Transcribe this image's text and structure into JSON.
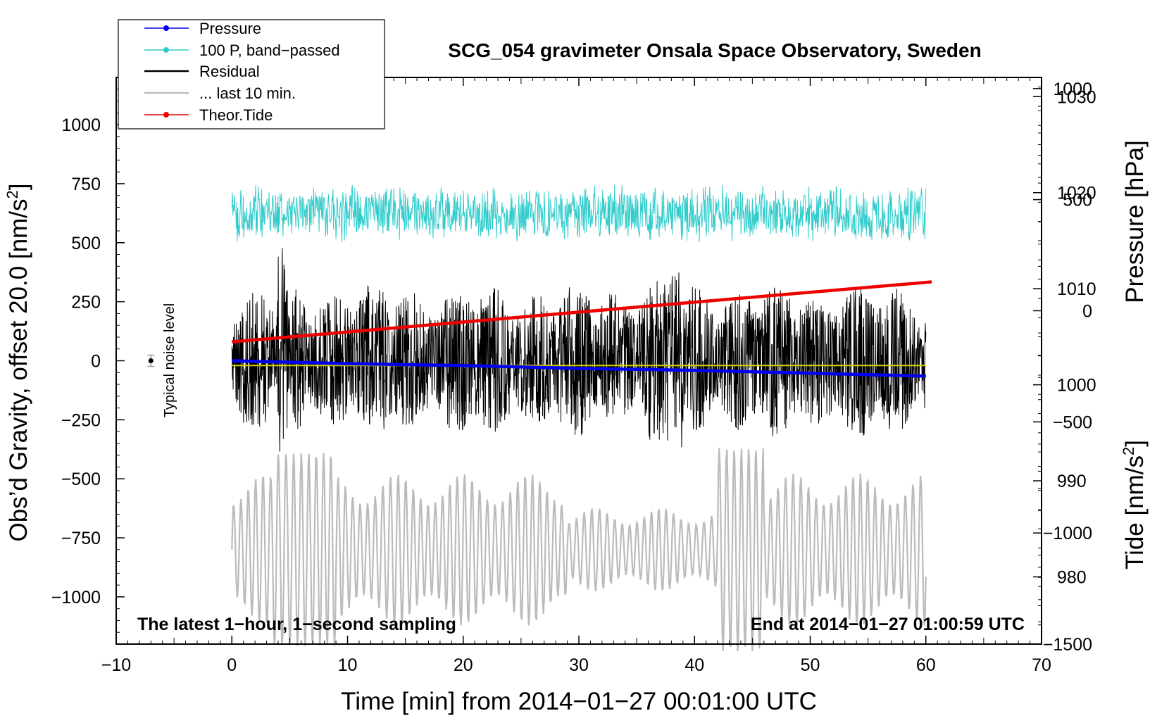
{
  "chart_data": {
    "type": "line",
    "title": "SCG_054 gravimeter Onsala Space Observatory, Sweden",
    "xlabel": "Time [min] from 2014−01−27 00:01:00 UTC",
    "ylabel": "Obs’d Gravity, offset 20.0 [nm/s",
    "ylabel_sup": "2",
    "ylabel_end": "]",
    "y2label": "Pressure [hPa]",
    "y3label": "Tide [nm/s",
    "y3label_sup": "2",
    "y3label_end": "]",
    "xlim": [
      -10,
      70
    ],
    "ylim": [
      -1200,
      1200
    ],
    "pressure_axis_range": [
      973,
      1032
    ],
    "tide_axis_range": [
      -1500,
      1050
    ],
    "x_ticks": [
      "−10",
      "0",
      "10",
      "20",
      "30",
      "40",
      "50",
      "60",
      "70"
    ],
    "y_ticks": [
      "1000",
      "750",
      "500",
      "250",
      "0",
      "−250",
      "−500",
      "−750",
      "−1000"
    ],
    "pressure_ticks": [
      "1030",
      "1020",
      "1010",
      "1000",
      "990",
      "980"
    ],
    "tide_ticks": [
      "1000",
      "500",
      "0",
      "−500",
      "−1000",
      "−1500"
    ],
    "grid": false,
    "legend_position": "top-left",
    "legend": [
      {
        "label": "Pressure",
        "color": "#0000ee",
        "marker": true
      },
      {
        "label": "100 P, band−passed",
        "color": "#33cccc",
        "marker": true
      },
      {
        "label": "Residual",
        "color": "#000000",
        "marker": false
      },
      {
        "label": "... last 10 min.",
        "color": "#bbbbbb",
        "marker": false
      },
      {
        "label": "Theor.Tide",
        "color": "#ee0000",
        "marker": true
      }
    ],
    "series": [
      {
        "name": "Pressure",
        "axis": "pressure",
        "color": "#0000ee",
        "x": [
          0,
          10,
          20,
          30,
          40,
          50,
          60
        ],
        "values": [
          1002.5,
          1002.2,
          1002.0,
          1001.7,
          1001.5,
          1001.2,
          1000.9
        ]
      },
      {
        "name": "100 P, band−passed",
        "axis": "gravity",
        "color": "#33cccc",
        "x_range": [
          0,
          60
        ],
        "center": 625,
        "amplitude": 125
      },
      {
        "name": "Residual",
        "axis": "gravity",
        "color": "#000000",
        "x_range": [
          0,
          60
        ],
        "center": 0,
        "amplitude": 330
      },
      {
        "name": "Residual (smoothed)",
        "axis": "gravity",
        "color": "#cccc00",
        "x": [
          0,
          60
        ],
        "values": [
          -20,
          -20
        ]
      },
      {
        "name": "... last 10 min.",
        "axis": "gravity",
        "color": "#bbbbbb",
        "x_range": [
          0,
          60
        ],
        "center": -800,
        "amplitude": 430
      },
      {
        "name": "Theor.Tide",
        "axis": "tide",
        "color": "#ee0000",
        "x": [
          0,
          60.5
        ],
        "values": [
          -140,
          130
        ]
      }
    ],
    "noise_marker": {
      "label": "Typical noise level",
      "x": -7,
      "y": 0
    },
    "annotations": [
      "The latest 1−hour, 1−second sampling",
      "End at 2014−01−27 01:00:59 UTC"
    ]
  }
}
